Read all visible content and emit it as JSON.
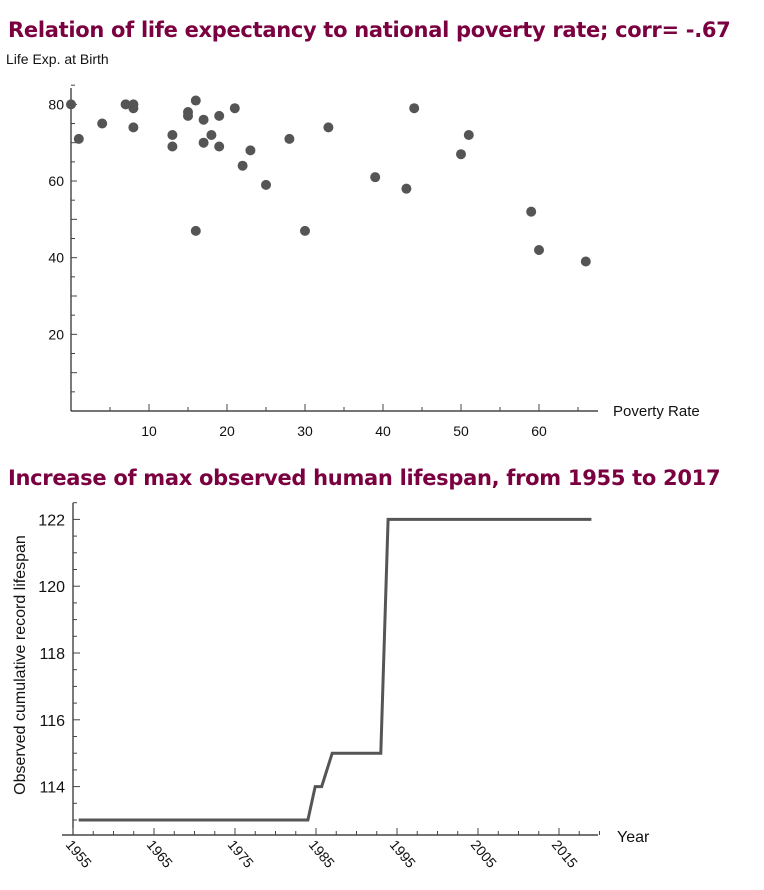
{
  "chart_data": [
    {
      "type": "scatter",
      "title": "Relation of life expectancy to national poverty rate; corr= -.67",
      "xlabel": "Poverty Rate",
      "ylabel": "Life Exp. at Birth",
      "xlim": [
        0,
        68
      ],
      "ylim": [
        0,
        85
      ],
      "xticks": [
        10,
        20,
        30,
        40,
        50,
        60
      ],
      "yticks": [
        20,
        40,
        60,
        80
      ],
      "grid": false,
      "color": "#555555",
      "points": [
        [
          0,
          80
        ],
        [
          1,
          71
        ],
        [
          4,
          75
        ],
        [
          7,
          80
        ],
        [
          8,
          80
        ],
        [
          8,
          79
        ],
        [
          8,
          74
        ],
        [
          13,
          72
        ],
        [
          13,
          69
        ],
        [
          15,
          78
        ],
        [
          15,
          77
        ],
        [
          16,
          81
        ],
        [
          16,
          47
        ],
        [
          17,
          76
        ],
        [
          17,
          70
        ],
        [
          18,
          72
        ],
        [
          19,
          77
        ],
        [
          19,
          69
        ],
        [
          21,
          79
        ],
        [
          22,
          64
        ],
        [
          23,
          68
        ],
        [
          25,
          59
        ],
        [
          28,
          71
        ],
        [
          30,
          47
        ],
        [
          33,
          74
        ],
        [
          39,
          61
        ],
        [
          43,
          58
        ],
        [
          44,
          79
        ],
        [
          50,
          67
        ],
        [
          51,
          72
        ],
        [
          59,
          52
        ],
        [
          60,
          42
        ],
        [
          66,
          39
        ]
      ]
    },
    {
      "type": "line",
      "title": "Increase of max observed human lifespan, from 1955 to 2017",
      "xlabel": "Year",
      "ylabel": "Observed cumulative record lifespan",
      "xlim": [
        1955,
        2020
      ],
      "ylim": [
        112.55,
        122.5
      ],
      "xticks": [
        1955,
        1965,
        1975,
        1985,
        1995,
        2005,
        2015
      ],
      "yticks": [
        114,
        116,
        118,
        120,
        122
      ],
      "grid": false,
      "color": "#555555",
      "points": [
        [
          1955.7,
          113
        ],
        [
          1984,
          113
        ],
        [
          1984.9,
          114
        ],
        [
          1985.7,
          114
        ],
        [
          1987,
          115
        ],
        [
          1993,
          115
        ],
        [
          1993.9,
          122
        ],
        [
          2019,
          122
        ]
      ]
    }
  ]
}
